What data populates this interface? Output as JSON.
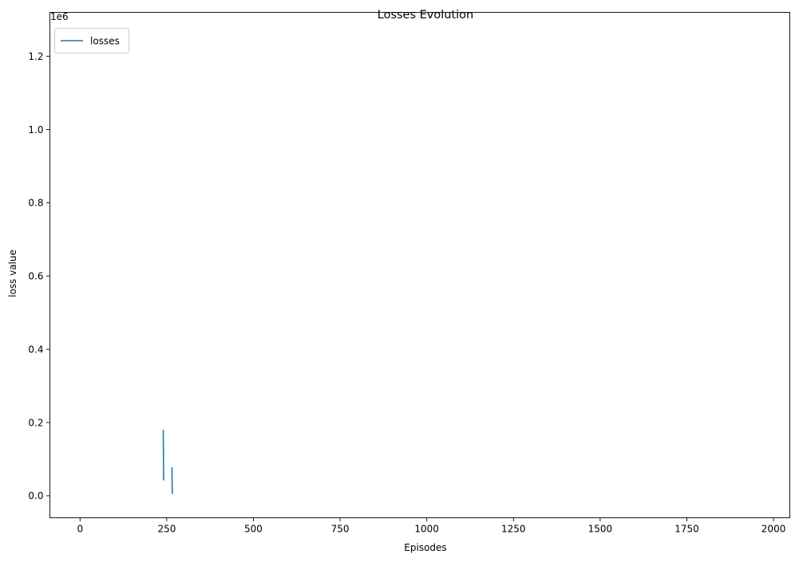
{
  "chart_data": {
    "type": "line",
    "title": "Losses Evolution",
    "xlabel": "Episodes",
    "ylabel": "loss value",
    "y_offset_label": "1e6",
    "xlim": [
      -87,
      2047
    ],
    "ylim": [
      -60000,
      1320000
    ],
    "x_ticks": [
      {
        "value": 0,
        "label": "0"
      },
      {
        "value": 250,
        "label": "250"
      },
      {
        "value": 500,
        "label": "500"
      },
      {
        "value": 750,
        "label": "750"
      },
      {
        "value": 1000,
        "label": "1000"
      },
      {
        "value": 1250,
        "label": "1250"
      },
      {
        "value": 1500,
        "label": "1500"
      },
      {
        "value": 1750,
        "label": "1750"
      },
      {
        "value": 2000,
        "label": "2000"
      }
    ],
    "y_ticks": [
      {
        "value": 0,
        "label": "0.0"
      },
      {
        "value": 200000,
        "label": "0.2"
      },
      {
        "value": 400000,
        "label": "0.4"
      },
      {
        "value": 600000,
        "label": "0.6"
      },
      {
        "value": 800000,
        "label": "0.8"
      },
      {
        "value": 1000000,
        "label": "1.0"
      },
      {
        "value": 1200000,
        "label": "1.2"
      }
    ],
    "grid": false,
    "legend_position": "top-left",
    "series": [
      {
        "name": "losses",
        "color": "#1f77b4",
        "segments": [
          [
            {
              "x": 240,
              "y": 180000
            },
            {
              "x": 241,
              "y": 42000
            }
          ],
          [
            {
              "x": 265,
              "y": 78000
            },
            {
              "x": 266,
              "y": 5000
            }
          ]
        ]
      }
    ]
  }
}
